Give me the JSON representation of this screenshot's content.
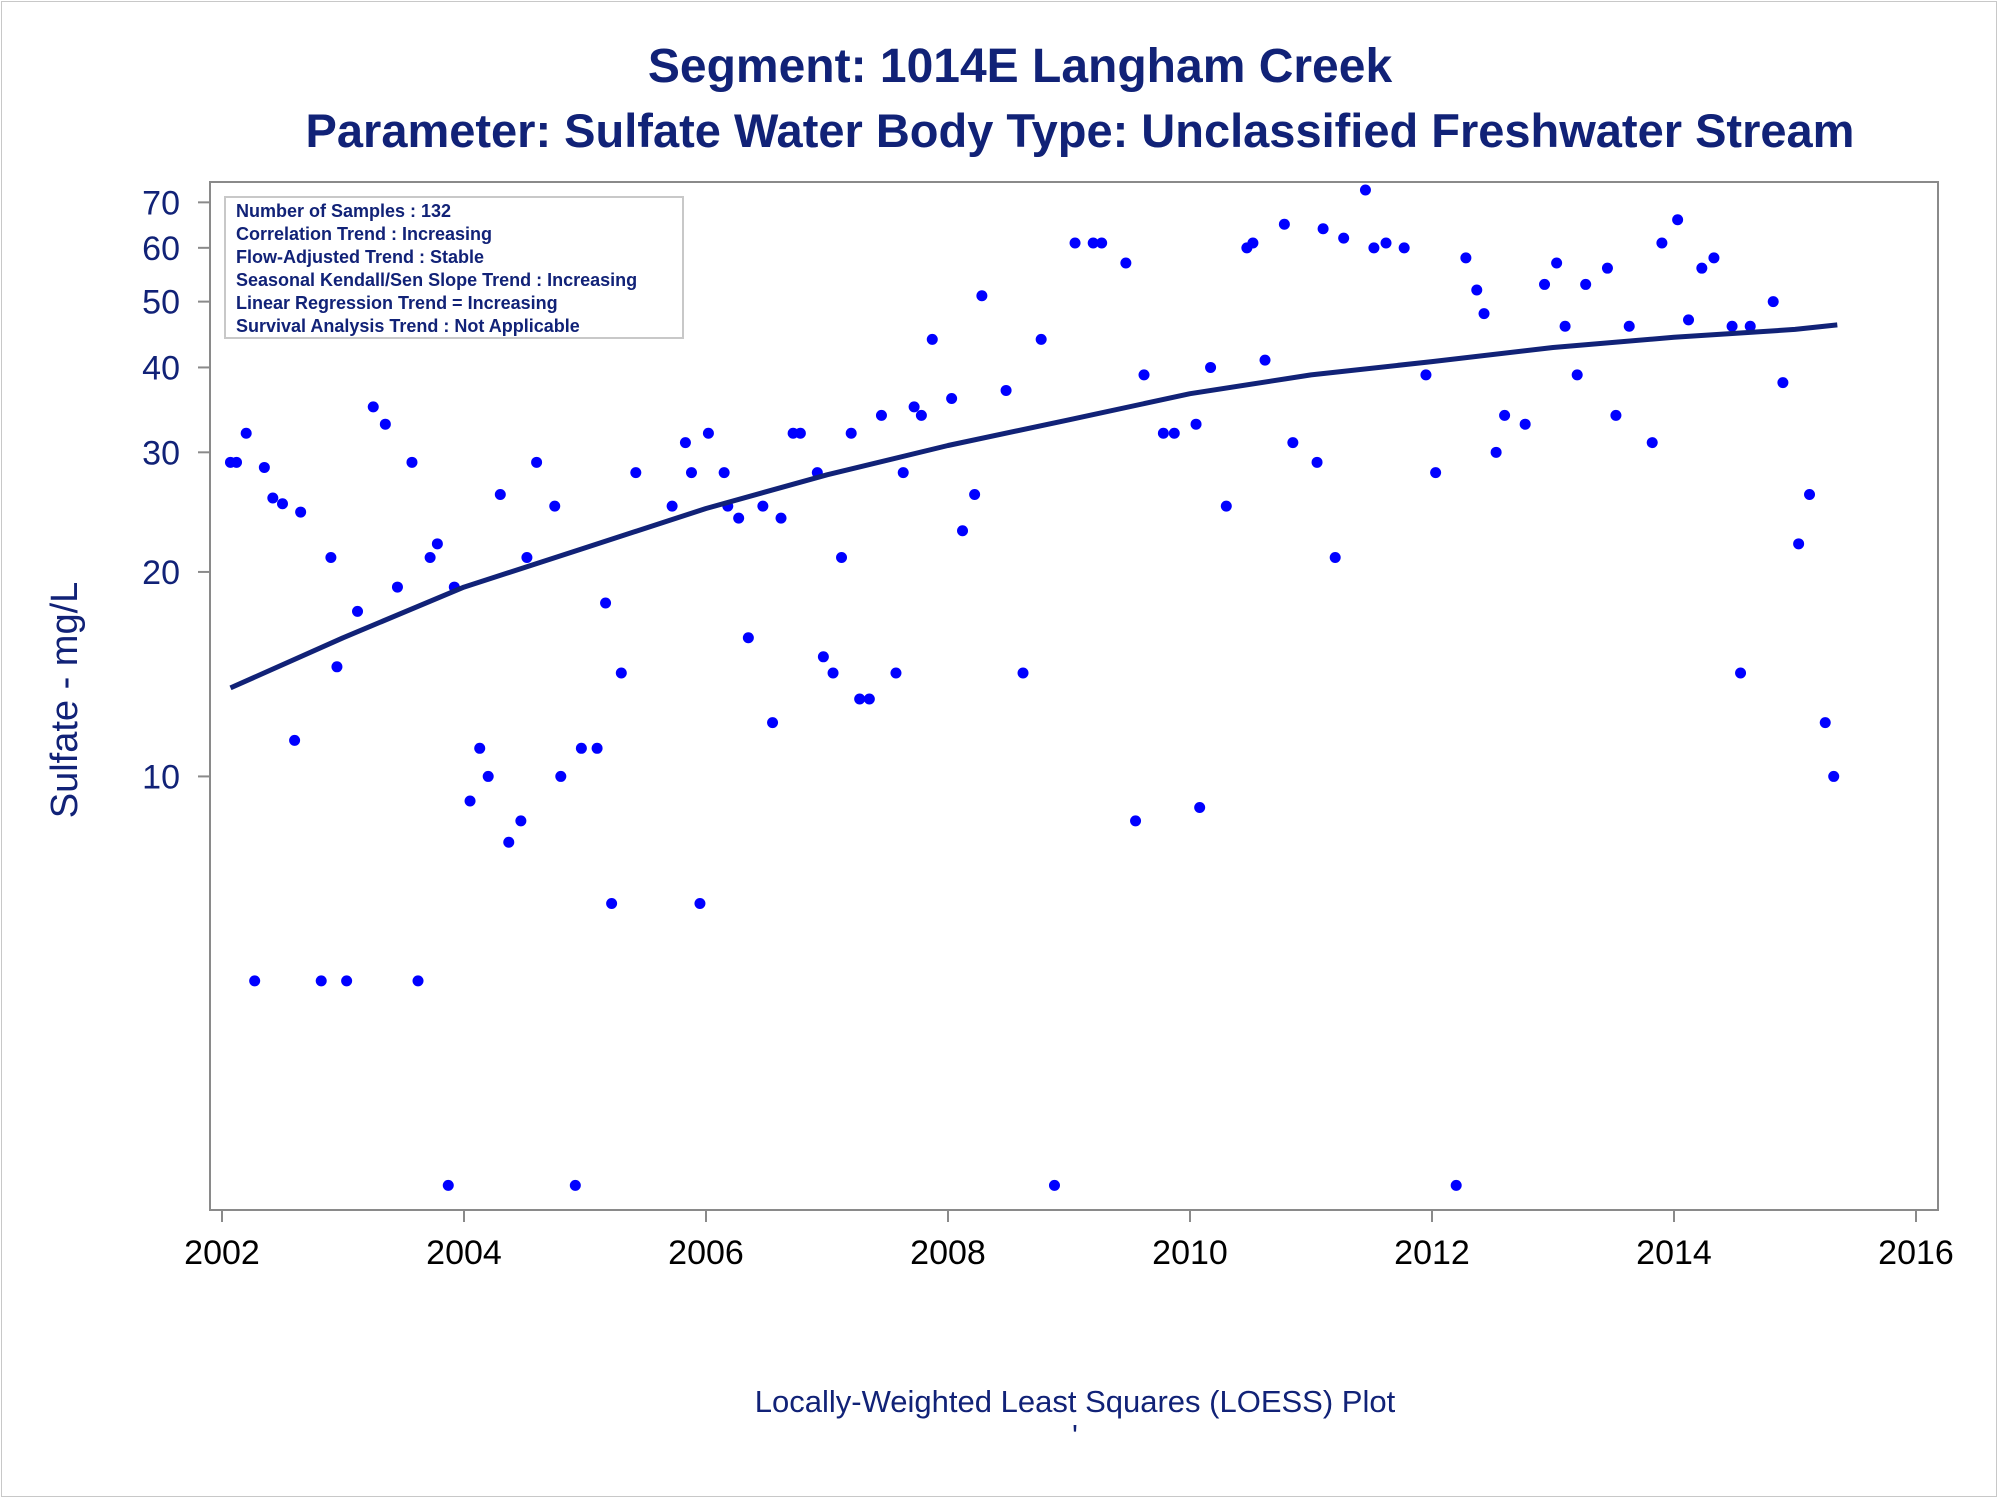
{
  "chart_data": {
    "type": "scatter",
    "title": "Segment: 1014E  Langham Creek",
    "subtitle": "Parameter: Sulfate   Water Body Type: Unclassified Freshwater Stream",
    "xlabel": "Locally-Weighted Least Squares (LOESS) Plot",
    "footnote": "'",
    "ylabel": "Sulfate - mg/L",
    "y_scale": "log",
    "xlim": [
      2002,
      2016
    ],
    "ylim": [
      2.3,
      75
    ],
    "x_ticks": [
      "2002",
      "2004",
      "2006",
      "2008",
      "2010",
      "2012",
      "2014",
      "2016"
    ],
    "y_ticks": [
      "10",
      "20",
      "30",
      "40",
      "50",
      "60",
      "70"
    ],
    "grid": false,
    "legend_position": "top-left",
    "colors": {
      "points": "#0000ff",
      "trend": "#112277",
      "text": "#112277"
    },
    "info_box": [
      "Number of Samples : 132",
      "Correlation Trend : Increasing",
      "Flow-Adjusted Trend : Stable",
      "Seasonal Kendall/Sen Slope Trend : Increasing",
      "Linear Regression Trend = Increasing",
      "Survival Analysis Trend : Not Applicable"
    ],
    "series": [
      {
        "type": "scatter",
        "points": [
          [
            2002.07,
            29
          ],
          [
            2002.12,
            29
          ],
          [
            2002.2,
            32
          ],
          [
            2002.27,
            5
          ],
          [
            2002.35,
            28.5
          ],
          [
            2002.42,
            25.7
          ],
          [
            2002.5,
            25.2
          ],
          [
            2002.6,
            11.3
          ],
          [
            2002.65,
            24.5
          ],
          [
            2002.82,
            5
          ],
          [
            2002.9,
            21
          ],
          [
            2002.95,
            14.5
          ],
          [
            2003.03,
            5
          ],
          [
            2003.12,
            17.5
          ],
          [
            2003.25,
            35
          ],
          [
            2003.35,
            33
          ],
          [
            2003.45,
            19
          ],
          [
            2003.57,
            29
          ],
          [
            2003.62,
            5
          ],
          [
            2003.72,
            21
          ],
          [
            2003.78,
            22
          ],
          [
            2003.87,
            2.5
          ],
          [
            2003.92,
            19
          ],
          [
            2004.05,
            9.2
          ],
          [
            2004.13,
            11
          ],
          [
            2004.2,
            10
          ],
          [
            2004.3,
            26
          ],
          [
            2004.37,
            8
          ],
          [
            2004.47,
            8.6
          ],
          [
            2004.52,
            21
          ],
          [
            2004.6,
            29
          ],
          [
            2004.75,
            25
          ],
          [
            2004.8,
            10
          ],
          [
            2004.92,
            2.5
          ],
          [
            2004.97,
            11
          ],
          [
            2005.1,
            11
          ],
          [
            2005.17,
            18
          ],
          [
            2005.22,
            6.5
          ],
          [
            2005.3,
            14.2
          ],
          [
            2005.42,
            28
          ],
          [
            2005.72,
            25
          ],
          [
            2005.83,
            31
          ],
          [
            2005.88,
            28
          ],
          [
            2005.95,
            6.5
          ],
          [
            2006.02,
            32
          ],
          [
            2006.15,
            28
          ],
          [
            2006.18,
            25
          ],
          [
            2006.27,
            24
          ],
          [
            2006.35,
            16
          ],
          [
            2006.47,
            25
          ],
          [
            2006.55,
            12
          ],
          [
            2006.62,
            24
          ],
          [
            2006.72,
            32
          ],
          [
            2006.78,
            32
          ],
          [
            2006.92,
            28
          ],
          [
            2006.97,
            15
          ],
          [
            2007.05,
            14.2
          ],
          [
            2007.12,
            21
          ],
          [
            2007.2,
            32
          ],
          [
            2007.27,
            13
          ],
          [
            2007.35,
            13
          ],
          [
            2007.45,
            34
          ],
          [
            2007.57,
            14.2
          ],
          [
            2007.63,
            28
          ],
          [
            2007.72,
            35
          ],
          [
            2007.78,
            34
          ],
          [
            2007.87,
            44
          ],
          [
            2008.03,
            36
          ],
          [
            2008.12,
            23
          ],
          [
            2008.22,
            26
          ],
          [
            2008.28,
            51
          ],
          [
            2008.48,
            37
          ],
          [
            2008.62,
            14.2
          ],
          [
            2008.77,
            44
          ],
          [
            2008.88,
            2.5
          ],
          [
            2009.05,
            61
          ],
          [
            2009.2,
            61
          ],
          [
            2009.27,
            61
          ],
          [
            2009.47,
            57
          ],
          [
            2009.55,
            8.6
          ],
          [
            2009.62,
            39
          ],
          [
            2009.78,
            32
          ],
          [
            2009.87,
            32
          ],
          [
            2010.05,
            33
          ],
          [
            2010.08,
            9
          ],
          [
            2010.17,
            40
          ],
          [
            2010.3,
            25
          ],
          [
            2010.47,
            60
          ],
          [
            2010.52,
            61
          ],
          [
            2010.62,
            41
          ],
          [
            2010.78,
            65
          ],
          [
            2010.85,
            31
          ],
          [
            2011.05,
            29
          ],
          [
            2011.1,
            64
          ],
          [
            2011.2,
            21
          ],
          [
            2011.27,
            62
          ],
          [
            2011.45,
            73
          ],
          [
            2011.52,
            60
          ],
          [
            2011.62,
            61
          ],
          [
            2011.77,
            60
          ],
          [
            2011.95,
            39
          ],
          [
            2012.03,
            28
          ],
          [
            2012.2,
            2.5
          ],
          [
            2012.28,
            58
          ],
          [
            2012.37,
            52
          ],
          [
            2012.43,
            48
          ],
          [
            2012.53,
            30
          ],
          [
            2012.6,
            34
          ],
          [
            2012.77,
            33
          ],
          [
            2012.93,
            53
          ],
          [
            2013.03,
            57
          ],
          [
            2013.1,
            46
          ],
          [
            2013.2,
            39
          ],
          [
            2013.27,
            53
          ],
          [
            2013.45,
            56
          ],
          [
            2013.52,
            34
          ],
          [
            2013.63,
            46
          ],
          [
            2013.82,
            31
          ],
          [
            2013.9,
            61
          ],
          [
            2014.03,
            66
          ],
          [
            2014.12,
            47
          ],
          [
            2014.23,
            56
          ],
          [
            2014.33,
            58
          ],
          [
            2014.48,
            46
          ],
          [
            2014.55,
            14.2
          ],
          [
            2014.63,
            46
          ],
          [
            2014.82,
            50
          ],
          [
            2014.9,
            38
          ],
          [
            2015.03,
            22
          ],
          [
            2015.12,
            26
          ],
          [
            2015.25,
            12
          ],
          [
            2015.32,
            10
          ]
        ]
      },
      {
        "type": "line",
        "points": [
          [
            2002.07,
            13.5
          ],
          [
            2003,
            16
          ],
          [
            2004,
            19
          ],
          [
            2005,
            21.7
          ],
          [
            2006,
            24.8
          ],
          [
            2007,
            27.8
          ],
          [
            2008,
            30.7
          ],
          [
            2009,
            33.5
          ],
          [
            2010,
            36.6
          ],
          [
            2011,
            39
          ],
          [
            2012,
            40.8
          ],
          [
            2013,
            42.8
          ],
          [
            2014,
            44.3
          ],
          [
            2015,
            45.5
          ],
          [
            2015.35,
            46.2
          ]
        ]
      }
    ]
  }
}
